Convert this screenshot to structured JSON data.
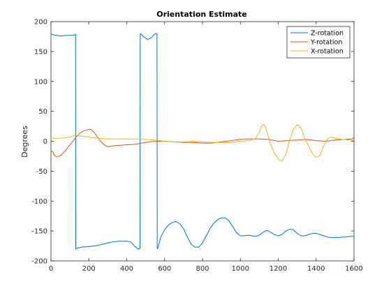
{
  "chart_data": {
    "type": "line",
    "title": "Orientation Estimate",
    "xlabel": "",
    "ylabel": "Degrees",
    "xlim": [
      0,
      1600
    ],
    "ylim": [
      -200,
      200
    ],
    "xticks": [
      "0",
      "200",
      "400",
      "600",
      "800",
      "1000",
      "1200",
      "1400",
      "1600"
    ],
    "yticks": [
      "-200",
      "-150",
      "-100",
      "-50",
      "0",
      "50",
      "100",
      "150",
      "200"
    ],
    "grid": false,
    "legend_position": "top-right",
    "series": [
      {
        "name": "Z-rotation",
        "color": "#0072BD",
        "x": [
          0,
          10,
          30,
          50,
          80,
          110,
          128,
          130,
          131,
          135,
          160,
          200,
          250,
          300,
          330,
          360,
          400,
          420,
          440,
          460,
          470,
          471,
          475,
          490,
          510,
          530,
          550,
          560,
          561,
          565,
          580,
          600,
          620,
          640,
          660,
          680,
          700,
          720,
          740,
          760,
          780,
          800,
          820,
          840,
          860,
          880,
          900,
          920,
          940,
          960,
          980,
          1000,
          1020,
          1040,
          1060,
          1080,
          1100,
          1120,
          1140,
          1160,
          1180,
          1200,
          1220,
          1240,
          1260,
          1280,
          1300,
          1320,
          1340,
          1360,
          1380,
          1400,
          1420,
          1440,
          1460,
          1480,
          1500,
          1520,
          1540,
          1560,
          1580,
          1600
        ],
        "y": [
          180,
          178,
          177,
          176,
          177,
          177,
          178,
          179,
          -180,
          -179,
          -177,
          -176,
          -174,
          -170,
          -168,
          -167,
          -167,
          -168,
          -175,
          -180,
          -179,
          180,
          179,
          175,
          170,
          173,
          180,
          180,
          -180,
          -178,
          -160,
          -148,
          -140,
          -136,
          -134,
          -138,
          -146,
          -160,
          -172,
          -177,
          -177,
          -170,
          -158,
          -146,
          -137,
          -131,
          -128,
          -128,
          -133,
          -143,
          -153,
          -158,
          -158,
          -157,
          -158,
          -159,
          -157,
          -152,
          -149,
          -152,
          -156,
          -158,
          -156,
          -150,
          -147,
          -148,
          -154,
          -158,
          -158,
          -156,
          -154,
          -154,
          -156,
          -158,
          -160,
          -161,
          -161,
          -161,
          -160,
          -160,
          -159,
          -159
        ]
      },
      {
        "name": "Y-rotation",
        "color": "#D95319",
        "x": [
          0,
          10,
          20,
          30,
          50,
          70,
          90,
          110,
          130,
          150,
          170,
          190,
          210,
          230,
          250,
          270,
          290,
          300,
          320,
          350,
          400,
          450,
          480,
          520,
          550,
          600,
          650,
          700,
          750,
          800,
          850,
          900,
          950,
          1000,
          1050,
          1100,
          1150,
          1200,
          1250,
          1300,
          1350,
          1400,
          1450,
          1500,
          1550,
          1590,
          1600
        ],
        "y": [
          -15,
          -18,
          -24,
          -26,
          -24,
          -18,
          -10,
          -2,
          6,
          13,
          17,
          19,
          20,
          14,
          5,
          -3,
          -8,
          -9,
          -8,
          -7,
          -6,
          -5,
          -3,
          -1,
          0,
          0,
          -1,
          -2,
          -2,
          -3,
          -3,
          -1,
          1,
          3,
          4,
          4,
          3,
          0,
          1,
          2,
          3,
          1,
          0,
          2,
          3,
          4,
          6
        ]
      },
      {
        "name": "X-rotation",
        "color": "#EDB120",
        "x": [
          0,
          20,
          50,
          80,
          110,
          130,
          150,
          200,
          250,
          300,
          350,
          400,
          450,
          500,
          550,
          600,
          650,
          700,
          750,
          800,
          850,
          900,
          950,
          1000,
          1050,
          1080,
          1100,
          1110,
          1120,
          1130,
          1140,
          1160,
          1180,
          1200,
          1220,
          1240,
          1260,
          1280,
          1300,
          1320,
          1340,
          1360,
          1380,
          1400,
          1420,
          1440,
          1460,
          1480,
          1500,
          1540,
          1580,
          1600
        ],
        "y": [
          5,
          5,
          5,
          6,
          8,
          10,
          9,
          7,
          5,
          4,
          4,
          4,
          4,
          3,
          2,
          0,
          -1,
          -1,
          0,
          -1,
          -2,
          -2,
          -2,
          0,
          1,
          5,
          15,
          24,
          28,
          26,
          16,
          -5,
          -20,
          -30,
          -33,
          -22,
          2,
          20,
          28,
          22,
          5,
          -8,
          -20,
          -27,
          -24,
          -8,
          4,
          7,
          5,
          3,
          2,
          1
        ]
      }
    ]
  }
}
